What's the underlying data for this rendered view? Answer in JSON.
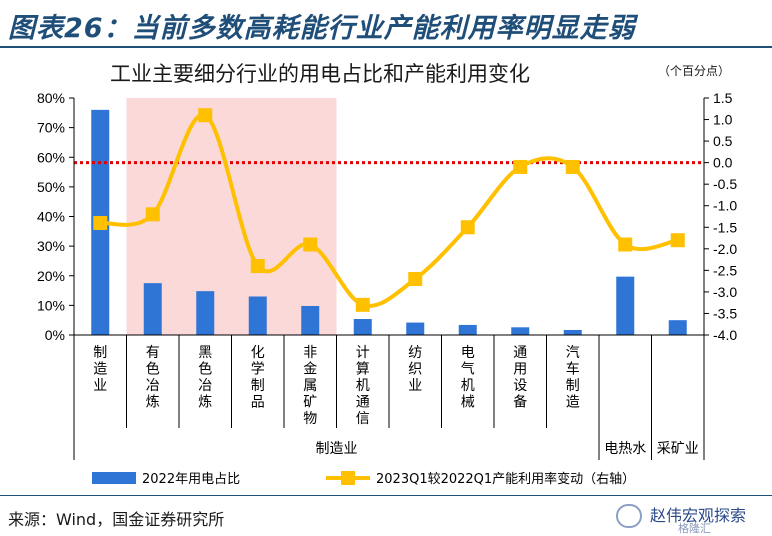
{
  "header": {
    "figure_title": "图表26：当前多数高耗能行业产能利用率明显走弱",
    "chart_title": "工业主要细分行业的用电占比和产能利用变化",
    "unit_note": "（个百分点）",
    "source": "来源：Wind，国金证券研究所"
  },
  "watermark": {
    "text": "赵伟宏观探索",
    "sub": "格隆汇"
  },
  "colors": {
    "bars": "#2e75d6",
    "line": "#ffc000",
    "zero_line": "#e00000",
    "highlight": "#fbd9d9",
    "title": "#1f4e79"
  },
  "chart_data": {
    "type": "bar",
    "categories": [
      "制造业",
      "有色冶炼",
      "黑色冶炼",
      "化学制品",
      "非金属矿物",
      "计算机通信",
      "纺织业",
      "电气机械",
      "通用设备",
      "汽车制造",
      "电热水",
      "采矿业"
    ],
    "category_labels": [
      "制\n造\n业",
      "有\n色\n冶\n炼",
      "黑\n色\n冶\n炼",
      "化\n学\n制\n品",
      "非\n金\n属\n矿\n物",
      "计\n算\n机\n通\n信",
      "纺\n织\n业",
      "电\n气\n机\n械",
      "通\n用\n设\n备",
      "汽\n车\n制\n造",
      "",
      ""
    ],
    "group_labels": [
      "制造业",
      "电热水",
      "采矿业"
    ],
    "series": [
      {
        "name": "2022年用电占比",
        "axis": "left",
        "type": "bar",
        "values": [
          76,
          17.5,
          14.8,
          13,
          9.8,
          5.4,
          4.2,
          3.4,
          2.6,
          1.7,
          19.7,
          5
        ]
      },
      {
        "name": "2023Q1较2022Q1产能利用率变动（右轴）",
        "axis": "right",
        "type": "line",
        "values": [
          -1.4,
          -1.2,
          1.1,
          -2.4,
          -1.9,
          -3.3,
          -2.7,
          -1.5,
          -0.1,
          -0.1,
          -1.9,
          -1.8
        ]
      }
    ],
    "y_left": {
      "ticks": [
        "0%",
        "10%",
        "20%",
        "30%",
        "40%",
        "50%",
        "60%",
        "70%",
        "80%"
      ],
      "min": 0,
      "max": 80
    },
    "y_right": {
      "ticks": [
        "-4.0",
        "-3.5",
        "-3.0",
        "-2.5",
        "-2.0",
        "-1.5",
        "-1.0",
        "-0.5",
        "0.0",
        "0.5",
        "1.0",
        "1.5"
      ],
      "min": -4,
      "max": 1.5
    },
    "reference_line": 0,
    "highlight_range": [
      "有色冶炼",
      "非金属矿物"
    ],
    "legend_position": "bottom"
  }
}
